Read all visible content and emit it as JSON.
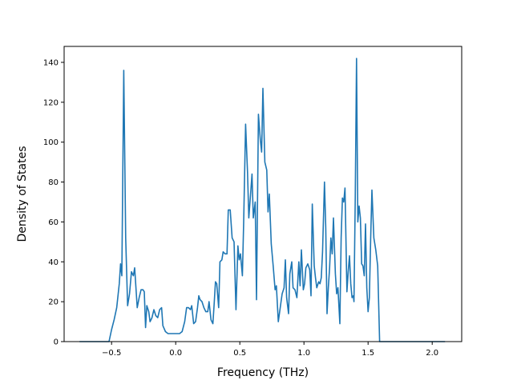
{
  "chart_data": {
    "type": "line",
    "title": "",
    "xlabel": "Frequency (THz)",
    "ylabel": "Density of States",
    "xlim": [
      -0.87,
      2.23
    ],
    "ylim": [
      0,
      148
    ],
    "x_ticks": [
      -0.5,
      0.0,
      0.5,
      1.0,
      1.5,
      2.0
    ],
    "x_tick_labels": [
      "−0.5",
      "0.0",
      "0.5",
      "1.0",
      "1.5",
      "2.0"
    ],
    "y_ticks": [
      0,
      20,
      40,
      60,
      80,
      100,
      120,
      140
    ],
    "y_tick_labels": [
      "0",
      "20",
      "40",
      "60",
      "80",
      "100",
      "120",
      "140"
    ],
    "grid": false,
    "color": "#1f77b4",
    "series": [
      {
        "points": [
          [
            -0.75,
            0
          ],
          [
            -0.52,
            0
          ],
          [
            -0.5,
            6
          ],
          [
            -0.48,
            11
          ],
          [
            -0.46,
            17
          ],
          [
            -0.44,
            29
          ],
          [
            -0.43,
            39
          ],
          [
            -0.42,
            33
          ],
          [
            -0.405,
            136
          ],
          [
            -0.39,
            52
          ],
          [
            -0.375,
            18
          ],
          [
            -0.36,
            24
          ],
          [
            -0.345,
            35
          ],
          [
            -0.33,
            33
          ],
          [
            -0.32,
            37
          ],
          [
            -0.3,
            17
          ],
          [
            -0.285,
            22
          ],
          [
            -0.27,
            26
          ],
          [
            -0.255,
            26
          ],
          [
            -0.245,
            25
          ],
          [
            -0.235,
            7
          ],
          [
            -0.225,
            18
          ],
          [
            -0.21,
            15
          ],
          [
            -0.2,
            10
          ],
          [
            -0.185,
            12
          ],
          [
            -0.17,
            16
          ],
          [
            -0.155,
            13
          ],
          [
            -0.14,
            12
          ],
          [
            -0.125,
            16
          ],
          [
            -0.11,
            17
          ],
          [
            -0.1,
            8
          ],
          [
            -0.08,
            5
          ],
          [
            -0.06,
            4
          ],
          [
            -0.03,
            4
          ],
          [
            0.0,
            4
          ],
          [
            0.03,
            4
          ],
          [
            0.05,
            5
          ],
          [
            0.07,
            10
          ],
          [
            0.085,
            17
          ],
          [
            0.1,
            17
          ],
          [
            0.115,
            16
          ],
          [
            0.125,
            18
          ],
          [
            0.14,
            9
          ],
          [
            0.155,
            10
          ],
          [
            0.17,
            17
          ],
          [
            0.18,
            23
          ],
          [
            0.19,
            21
          ],
          [
            0.205,
            20
          ],
          [
            0.22,
            17
          ],
          [
            0.235,
            15
          ],
          [
            0.25,
            15
          ],
          [
            0.26,
            20
          ],
          [
            0.275,
            11
          ],
          [
            0.29,
            9
          ],
          [
            0.3,
            19
          ],
          [
            0.31,
            30
          ],
          [
            0.32,
            29
          ],
          [
            0.335,
            17
          ],
          [
            0.345,
            40
          ],
          [
            0.36,
            41
          ],
          [
            0.37,
            45
          ],
          [
            0.385,
            44
          ],
          [
            0.4,
            44
          ],
          [
            0.41,
            66
          ],
          [
            0.425,
            66
          ],
          [
            0.44,
            52
          ],
          [
            0.455,
            50
          ],
          [
            0.47,
            16
          ],
          [
            0.485,
            48
          ],
          [
            0.495,
            41
          ],
          [
            0.505,
            44
          ],
          [
            0.52,
            33
          ],
          [
            0.53,
            60
          ],
          [
            0.545,
            109
          ],
          [
            0.56,
            85
          ],
          [
            0.57,
            62
          ],
          [
            0.585,
            75
          ],
          [
            0.595,
            84
          ],
          [
            0.605,
            62
          ],
          [
            0.62,
            70
          ],
          [
            0.63,
            21
          ],
          [
            0.645,
            114
          ],
          [
            0.66,
            101
          ],
          [
            0.67,
            95
          ],
          [
            0.68,
            127
          ],
          [
            0.695,
            90
          ],
          [
            0.71,
            86
          ],
          [
            0.72,
            65
          ],
          [
            0.73,
            74
          ],
          [
            0.745,
            49
          ],
          [
            0.76,
            38
          ],
          [
            0.775,
            26
          ],
          [
            0.785,
            28
          ],
          [
            0.8,
            10
          ],
          [
            0.815,
            17
          ],
          [
            0.83,
            24
          ],
          [
            0.845,
            27
          ],
          [
            0.855,
            41
          ],
          [
            0.865,
            22
          ],
          [
            0.88,
            14
          ],
          [
            0.89,
            34
          ],
          [
            0.905,
            40
          ],
          [
            0.915,
            27
          ],
          [
            0.93,
            26
          ],
          [
            0.945,
            22
          ],
          [
            0.96,
            40
          ],
          [
            0.97,
            28
          ],
          [
            0.98,
            46
          ],
          [
            0.995,
            26
          ],
          [
            1.005,
            29
          ],
          [
            1.015,
            37
          ],
          [
            1.03,
            39
          ],
          [
            1.045,
            36
          ],
          [
            1.055,
            23
          ],
          [
            1.065,
            69
          ],
          [
            1.08,
            38
          ],
          [
            1.09,
            32
          ],
          [
            1.1,
            27
          ],
          [
            1.115,
            30
          ],
          [
            1.125,
            29
          ],
          [
            1.135,
            32
          ],
          [
            1.145,
            45
          ],
          [
            1.16,
            80
          ],
          [
            1.17,
            57
          ],
          [
            1.18,
            14
          ],
          [
            1.19,
            27
          ],
          [
            1.2,
            37
          ],
          [
            1.21,
            52
          ],
          [
            1.22,
            44
          ],
          [
            1.23,
            62
          ],
          [
            1.245,
            34
          ],
          [
            1.255,
            24
          ],
          [
            1.265,
            27
          ],
          [
            1.28,
            9
          ],
          [
            1.29,
            52
          ],
          [
            1.3,
            72
          ],
          [
            1.31,
            70
          ],
          [
            1.32,
            77
          ],
          [
            1.335,
            25
          ],
          [
            1.345,
            35
          ],
          [
            1.355,
            43
          ],
          [
            1.365,
            29
          ],
          [
            1.375,
            22
          ],
          [
            1.385,
            23
          ],
          [
            1.39,
            20
          ],
          [
            1.4,
            72
          ],
          [
            1.41,
            142
          ],
          [
            1.42,
            60
          ],
          [
            1.43,
            68
          ],
          [
            1.44,
            62
          ],
          [
            1.45,
            39
          ],
          [
            1.46,
            38
          ],
          [
            1.47,
            33
          ],
          [
            1.48,
            59
          ],
          [
            1.49,
            27
          ],
          [
            1.5,
            15
          ],
          [
            1.51,
            22
          ],
          [
            1.52,
            51
          ],
          [
            1.53,
            76
          ],
          [
            1.545,
            52
          ],
          [
            1.56,
            46
          ],
          [
            1.575,
            38
          ],
          [
            1.59,
            0
          ],
          [
            1.65,
            0
          ],
          [
            2.1,
            0
          ]
        ]
      }
    ]
  }
}
